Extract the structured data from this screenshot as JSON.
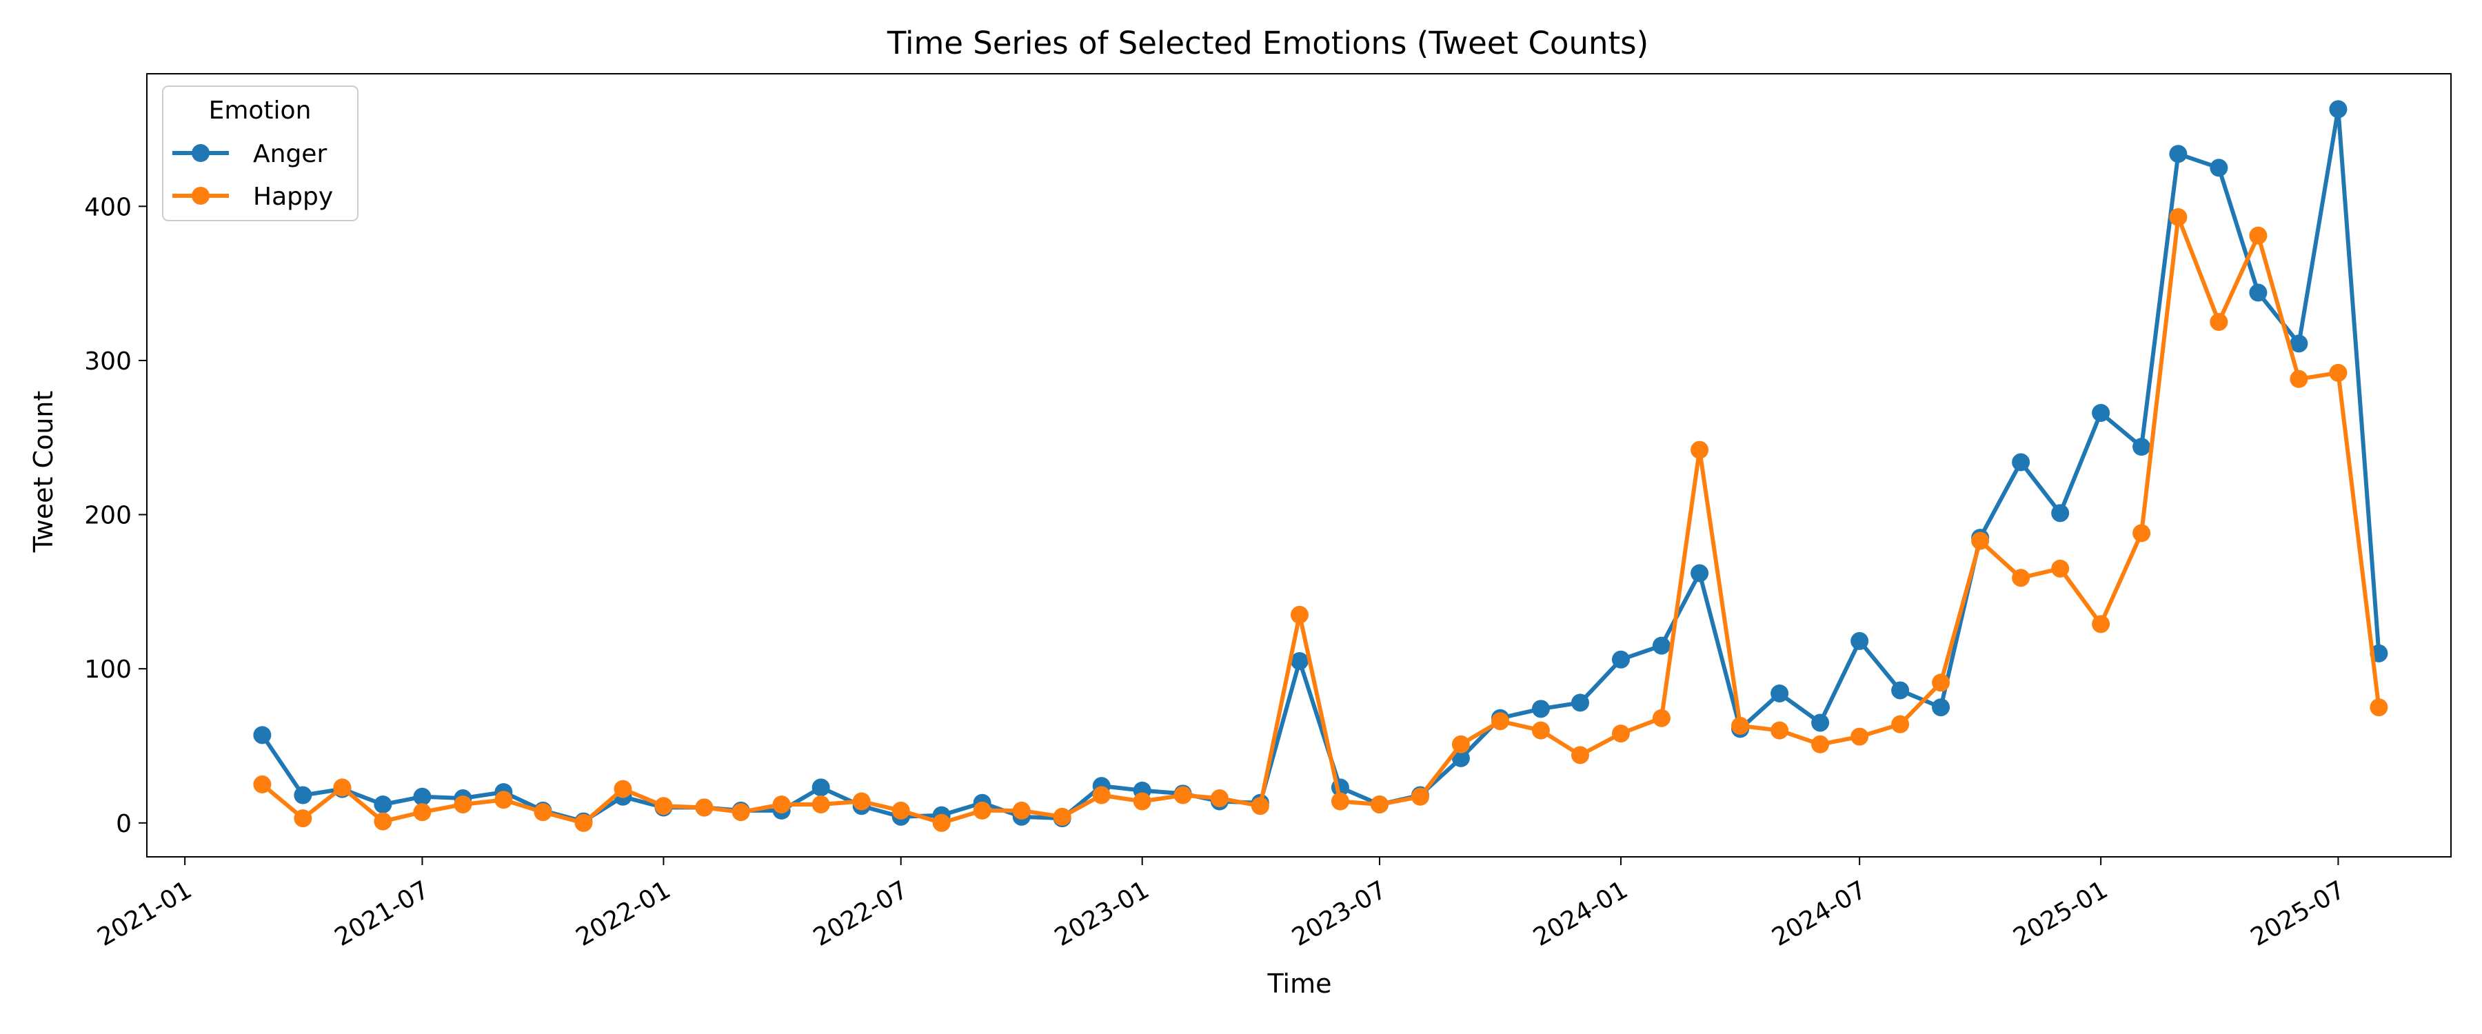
{
  "chart_data": {
    "type": "line",
    "title": "Time Series of Selected Emotions (Tweet Counts)",
    "xlabel": "Time",
    "ylabel": "Tweet Count",
    "x": [
      "2021-03",
      "2021-04",
      "2021-05",
      "2021-06",
      "2021-07",
      "2021-08",
      "2021-09",
      "2021-10",
      "2021-11",
      "2021-12",
      "2022-01",
      "2022-02",
      "2022-03",
      "2022-04",
      "2022-05",
      "2022-06",
      "2022-07",
      "2022-08",
      "2022-09",
      "2022-10",
      "2022-11",
      "2022-12",
      "2023-01",
      "2023-02",
      "2023-03",
      "2023-04",
      "2023-05",
      "2023-06",
      "2023-07",
      "2023-08",
      "2023-09",
      "2023-10",
      "2023-11",
      "2023-12",
      "2024-01",
      "2024-02",
      "2024-03",
      "2024-04",
      "2024-05",
      "2024-06",
      "2024-07",
      "2024-08",
      "2024-09",
      "2024-10",
      "2024-11",
      "2024-12",
      "2025-01",
      "2025-02",
      "2025-03",
      "2025-04",
      "2025-05",
      "2025-06",
      "2025-07",
      "2025-08"
    ],
    "series": [
      {
        "name": "Anger",
        "color": "#1f77b4",
        "values": [
          57,
          18,
          22,
          12,
          17,
          16,
          20,
          8,
          1,
          17,
          10,
          10,
          8,
          8,
          23,
          11,
          4,
          5,
          13,
          4,
          3,
          24,
          21,
          19,
          14,
          13,
          105,
          23,
          12,
          18,
          42,
          68,
          74,
          78,
          106,
          115,
          162,
          61,
          84,
          65,
          118,
          86,
          75,
          185,
          234,
          201,
          266,
          244,
          434,
          425,
          344,
          311,
          463,
          110
        ]
      },
      {
        "name": "Happy",
        "color": "#ff7f0e",
        "values": [
          25,
          3,
          23,
          1,
          7,
          12,
          15,
          7,
          0,
          22,
          11,
          10,
          7,
          12,
          12,
          14,
          8,
          0,
          8,
          8,
          4,
          18,
          14,
          18,
          16,
          11,
          135,
          14,
          12,
          17,
          51,
          66,
          60,
          44,
          58,
          68,
          242,
          63,
          60,
          51,
          56,
          64,
          91,
          183,
          159,
          165,
          129,
          188,
          393,
          325,
          381,
          288,
          292,
          75
        ]
      }
    ],
    "x_ticks": [
      "2021-01",
      "2021-07",
      "2022-01",
      "2022-07",
      "2023-01",
      "2023-07",
      "2024-01",
      "2024-07",
      "2025-01",
      "2025-07"
    ],
    "y_ticks": [
      0,
      100,
      200,
      300,
      400
    ],
    "ylim": [
      -22,
      486
    ],
    "xlim": [
      "2020-12-03",
      "2025-09-25"
    ],
    "legend": {
      "title": "Emotion",
      "position": "top-left"
    },
    "grid": false
  }
}
